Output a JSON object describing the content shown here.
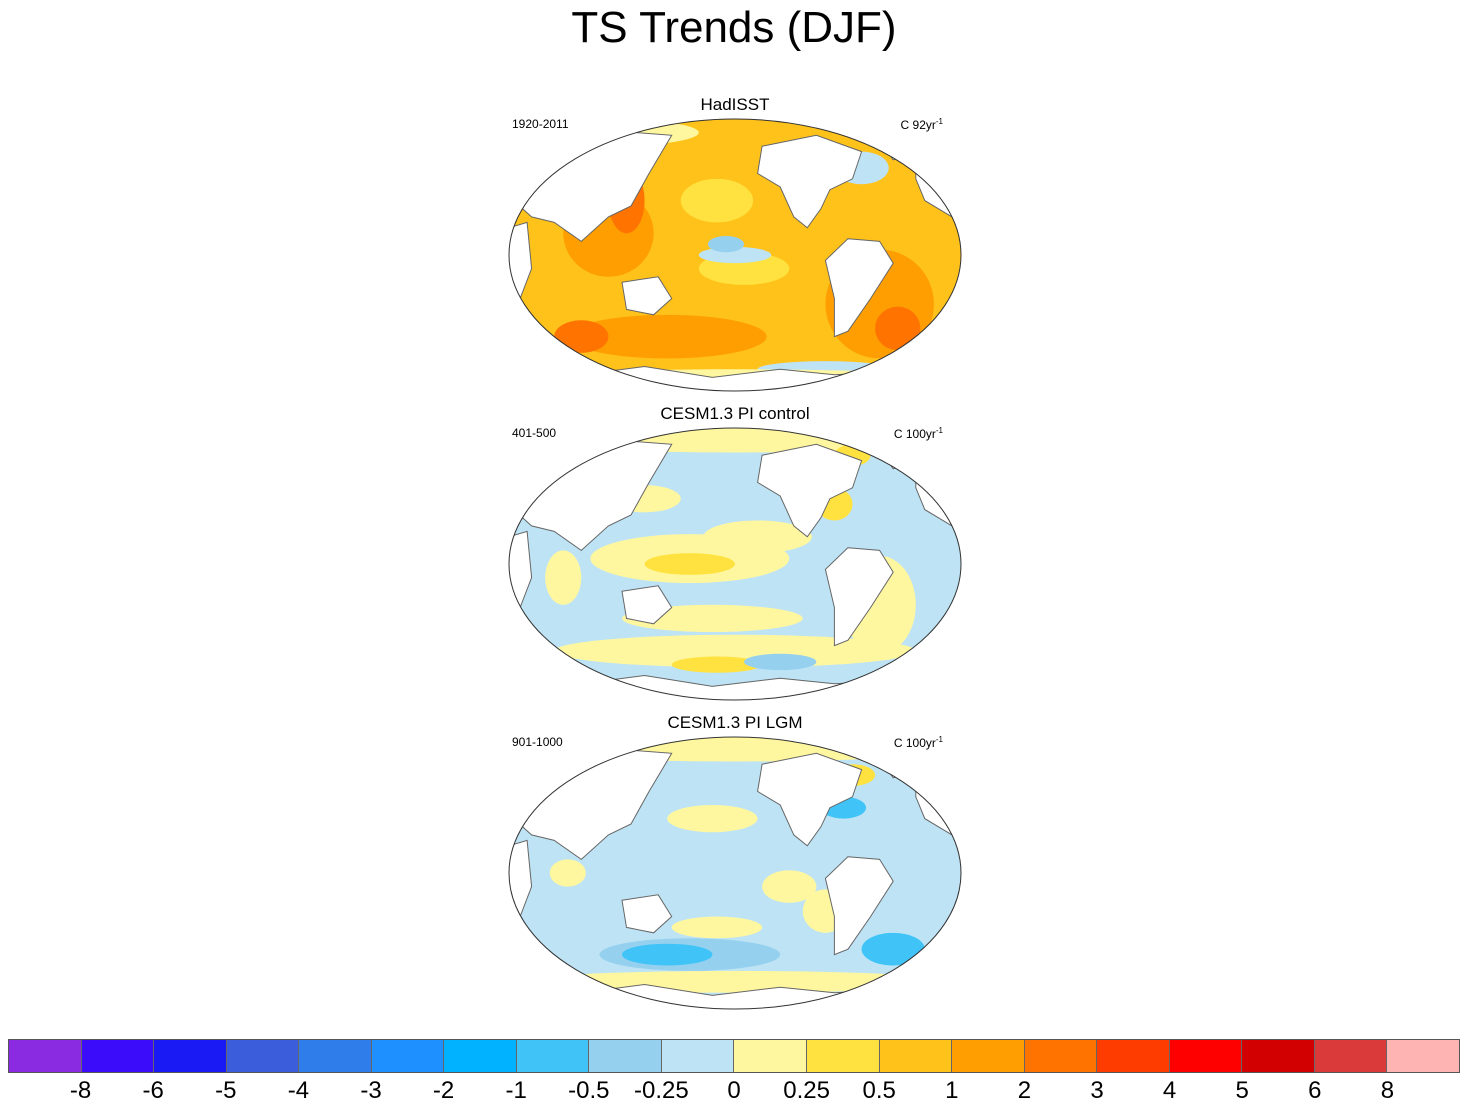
{
  "title": "TS Trends (DJF)",
  "panels": [
    {
      "title": "HadISST",
      "period": "1920-2011",
      "units_text": "C 92yr",
      "units_sup": "-1",
      "scheme": "warm"
    },
    {
      "title": "CESM1.3 PI control",
      "period": "401-500",
      "units_text": "C 100yr",
      "units_sup": "-1",
      "scheme": "mixed"
    },
    {
      "title": "CESM1.3 PI LGM",
      "period": "901-1000",
      "units_text": "C 100yr",
      "units_sup": "-1",
      "scheme": "cool"
    }
  ],
  "colorbar": {
    "colors": [
      "#8a2be2",
      "#3b0cfa",
      "#1a1af5",
      "#3c5ddb",
      "#2f7deb",
      "#1e90ff",
      "#00b2ff",
      "#40c4f8",
      "#95d1ee",
      "#bde3f5",
      "#fff7a0",
      "#ffe240",
      "#ffc21a",
      "#ff9e00",
      "#ff7300",
      "#ff3c00",
      "#ff0000",
      "#d20000",
      "#db3a3a",
      "#ffb4b4"
    ],
    "ticks": [
      "-8",
      "-6",
      "-5",
      "-4",
      "-3",
      "-2",
      "-1",
      "-0.5",
      "-0.25",
      "0",
      "0.25",
      "0.5",
      "1",
      "2",
      "3",
      "4",
      "5",
      "6",
      "8"
    ]
  }
}
